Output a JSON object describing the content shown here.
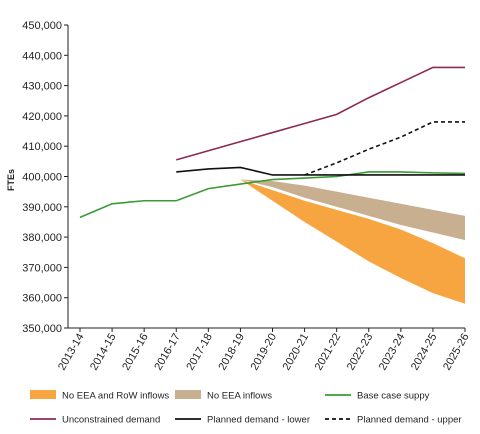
{
  "chart_data": {
    "type": "line",
    "ylabel": "FTEs",
    "xlabel": "",
    "ylim": [
      350000,
      450000
    ],
    "y_ticks": [
      350000,
      360000,
      370000,
      380000,
      390000,
      400000,
      410000,
      420000,
      430000,
      440000,
      450000
    ],
    "y_tick_labels": [
      "350,000",
      "360,000",
      "370,000",
      "380,000",
      "390,000",
      "400,000",
      "410,000",
      "420,000",
      "430,000",
      "440,000",
      "450,000"
    ],
    "categories": [
      "2013-14",
      "2014-15",
      "2015-16",
      "2016-17",
      "2017-18",
      "2018-19",
      "2019-20",
      "2020-21",
      "2021-22",
      "2022-23",
      "2023-24",
      "2024-25",
      "2025-26"
    ],
    "grid": false,
    "legend_position": "bottom",
    "bands": [
      {
        "name": "No EEA and RoW inflows",
        "color": "#f7a541",
        "x": [
          "2018-19",
          "2019-20",
          "2020-21",
          "2021-22",
          "2022-23",
          "2023-24",
          "2024-25",
          "2025-26"
        ],
        "upper": [
          399000,
          395500,
          392000,
          389000,
          386000,
          382500,
          378000,
          373000
        ],
        "lower": [
          399000,
          392000,
          385000,
          378500,
          372000,
          366500,
          361500,
          358000
        ]
      },
      {
        "name": "No EEA inflows",
        "color": "#c8af8f",
        "x": [
          "2018-19",
          "2019-20",
          "2020-21",
          "2021-22",
          "2022-23",
          "2023-24",
          "2024-25",
          "2025-26"
        ],
        "upper": [
          399000,
          398500,
          397000,
          395000,
          393000,
          391000,
          389000,
          387000
        ],
        "lower": [
          399000,
          396500,
          393000,
          390000,
          387000,
          384000,
          381500,
          379000
        ]
      }
    ],
    "series": [
      {
        "name": "Base case suppy",
        "color": "#3a9b35",
        "dash": "solid",
        "x": [
          "2013-14",
          "2014-15",
          "2015-16",
          "2016-17",
          "2017-18",
          "2018-19",
          "2019-20",
          "2020-21",
          "2021-22",
          "2022-23",
          "2023-24",
          "2024-25",
          "2025-26"
        ],
        "values": [
          386500,
          391000,
          392000,
          392000,
          396000,
          397500,
          399000,
          399500,
          400000,
          401500,
          401500,
          401200,
          401000
        ]
      },
      {
        "name": "Unconstrained demand",
        "color": "#8b2a54",
        "dash": "solid",
        "x": [
          "2016-17",
          "2017-18",
          "2018-19",
          "2019-20",
          "2020-21",
          "2021-22",
          "2022-23",
          "2023-24",
          "2024-25",
          "2025-26"
        ],
        "values": [
          405500,
          408500,
          411500,
          414500,
          417500,
          420500,
          426000,
          431000,
          436000,
          436000
        ]
      },
      {
        "name": "Planned demand - lower",
        "color": "#111111",
        "dash": "solid",
        "x": [
          "2016-17",
          "2017-18",
          "2018-19",
          "2019-20",
          "2020-21",
          "2021-22",
          "2022-23",
          "2023-24",
          "2024-25",
          "2025-26"
        ],
        "values": [
          401500,
          402500,
          403000,
          400500,
          400500,
          400500,
          400500,
          400500,
          400500,
          400500
        ]
      },
      {
        "name": "Planned demand - upper",
        "color": "#111111",
        "dash": "dashed",
        "x": [
          "2020-21",
          "2021-22",
          "2022-23",
          "2023-24",
          "2024-25",
          "2025-26"
        ],
        "values": [
          400500,
          404500,
          409000,
          413000,
          418000,
          418000
        ]
      }
    ]
  }
}
